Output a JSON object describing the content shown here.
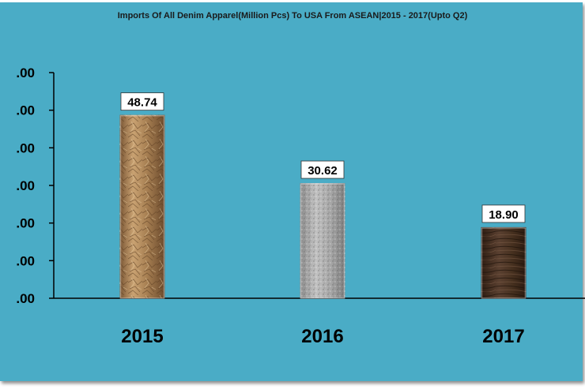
{
  "chart_data": {
    "type": "bar",
    "title": "Imports Of All Denim Apparel(Million Pcs) To USA From ASEAN|2015 - 2017(Upto Q2)",
    "categories": [
      "2015",
      "2016",
      "2017"
    ],
    "values": [
      48.74,
      30.62,
      18.9
    ],
    "data_labels": [
      "48.74",
      "30.62",
      "18.90"
    ],
    "ylim": [
      0,
      60
    ],
    "yticks": [
      0,
      10,
      20,
      30,
      40,
      50,
      60
    ],
    "ytick_labels": [
      ".00",
      ".00",
      ".00",
      ".00",
      ".00",
      ".00",
      ".00"
    ],
    "grid": false,
    "legend": "none",
    "colors": {
      "background": "#4aacc6",
      "bar_2015": "#b08a5c",
      "bar_2016": "#a8a8a8",
      "bar_2017": "#4a3426"
    }
  }
}
